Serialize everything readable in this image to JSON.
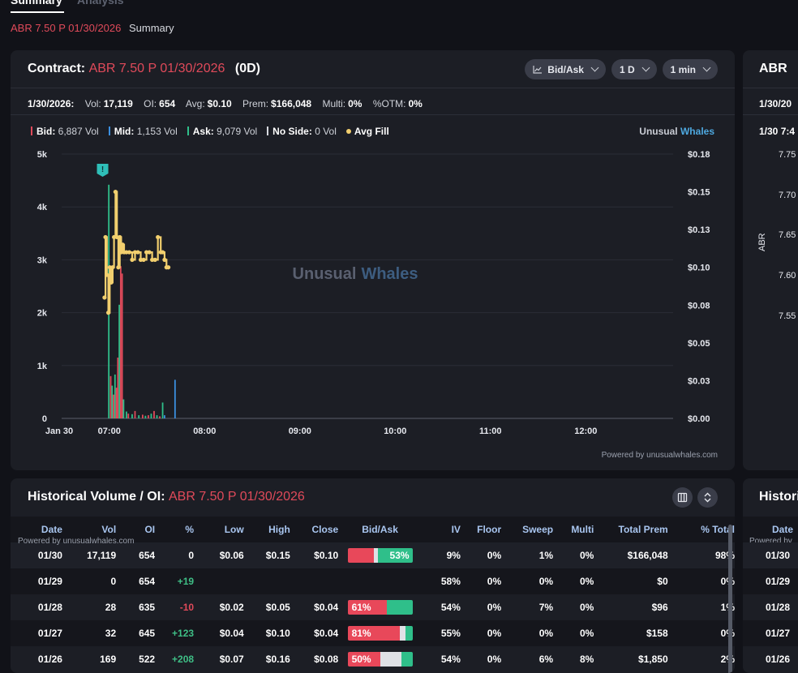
{
  "tabs": {
    "summary": "Summary",
    "analysis": "Analysis"
  },
  "breadcrumb": {
    "contract": "ABR 7.50 P 01/30/2026",
    "label": "Summary"
  },
  "contract_panel": {
    "title_prefix": "Contract:",
    "contract": "ABR 7.50 P 01/30/2026",
    "dte": "(0D)",
    "controls": [
      "Bid/Ask",
      "1 D",
      "1 min"
    ],
    "stats": {
      "date": "1/30/2026:",
      "vol_label": "Vol:",
      "vol": "17,119",
      "oi_label": "OI:",
      "oi": "654",
      "avg_label": "Avg:",
      "avg": "$0.10",
      "prem_label": "Prem:",
      "prem": "$166,048",
      "multi_label": "Multi:",
      "multi": "0%",
      "otm_label": "%OTM:",
      "otm": "0%"
    },
    "legend": {
      "bid_label": "Bid:",
      "bid": "6,887 Vol",
      "mid_label": "Mid:",
      "mid": "1,153 Vol",
      "ask_label": "Ask:",
      "ask": "9,079 Vol",
      "noside_label": "No Side:",
      "noside": "0 Vol",
      "avgfill_label": "Avg Fill"
    },
    "brand": {
      "a": "Unusual",
      "b": "Whales"
    },
    "powered": "Powered by unusualwhales.com",
    "colors": {
      "bid": "#e04a5a",
      "mid": "#3b8fe0",
      "ask": "#2fbf8a",
      "noside": "#d7d9df",
      "avgfill": "#f2cf6e"
    }
  },
  "chart_data": {
    "type": "bar",
    "watermark": {
      "a": "Unusual",
      "b": "Whales"
    },
    "xlim": [
      "06:30",
      "12:55"
    ],
    "x_ticks": [
      "Jan 30",
      "07:00",
      "08:00",
      "09:00",
      "10:00",
      "11:00",
      "12:00"
    ],
    "y_left": {
      "ticks": [
        "0",
        "1k",
        "2k",
        "3k",
        "4k",
        "5k"
      ],
      "lim": [
        0,
        5000
      ]
    },
    "y_right": {
      "ticks": [
        "$0.00",
        "$0.03",
        "$0.05",
        "$0.08",
        "$0.10",
        "$0.13",
        "$0.15",
        "$0.18"
      ],
      "lim": [
        0,
        0.175
      ]
    },
    "volume_bars": [
      {
        "t": 6.995,
        "side": "ask",
        "v": 4420
      },
      {
        "t": 7.015,
        "side": "bid",
        "v": 800
      },
      {
        "t": 7.03,
        "side": "ask",
        "v": 620
      },
      {
        "t": 7.045,
        "side": "bid",
        "v": 450
      },
      {
        "t": 7.06,
        "side": "ask",
        "v": 830
      },
      {
        "t": 7.075,
        "side": "bid",
        "v": 580
      },
      {
        "t": 7.09,
        "side": "bid",
        "v": 1150
      },
      {
        "t": 7.105,
        "side": "ask",
        "v": 2150
      },
      {
        "t": 7.12,
        "side": "bid",
        "v": 2880
      },
      {
        "t": 7.135,
        "side": "bid",
        "v": 2740
      },
      {
        "t": 7.15,
        "side": "ask",
        "v": 360
      },
      {
        "t": 7.18,
        "side": "ask",
        "v": 130
      },
      {
        "t": 7.2,
        "side": "bid",
        "v": 90
      },
      {
        "t": 7.24,
        "side": "ask",
        "v": 80
      },
      {
        "t": 7.27,
        "side": "bid",
        "v": 140
      },
      {
        "t": 7.31,
        "side": "ask",
        "v": 60
      },
      {
        "t": 7.35,
        "side": "bid",
        "v": 70
      },
      {
        "t": 7.38,
        "side": "ask",
        "v": 50
      },
      {
        "t": 7.41,
        "side": "bid",
        "v": 60
      },
      {
        "t": 7.44,
        "side": "ask",
        "v": 90
      },
      {
        "t": 7.47,
        "side": "bid",
        "v": 140
      },
      {
        "t": 7.5,
        "side": "ask",
        "v": 60
      },
      {
        "t": 7.53,
        "side": "bid",
        "v": 40
      },
      {
        "t": 7.56,
        "side": "ask",
        "v": 300
      },
      {
        "t": 7.58,
        "side": "mid",
        "v": 60
      },
      {
        "t": 7.69,
        "side": "mid",
        "v": 730
      }
    ],
    "avg_fill": [
      [
        6.95,
        0.08
      ],
      [
        6.96,
        0.12
      ],
      [
        6.975,
        0.095
      ],
      [
        6.99,
        0.07
      ],
      [
        7.005,
        0.1
      ],
      [
        7.02,
        0.09
      ],
      [
        7.035,
        0.1
      ],
      [
        7.05,
        0.12
      ],
      [
        7.065,
        0.15
      ],
      [
        7.08,
        0.12
      ],
      [
        7.095,
        0.1
      ],
      [
        7.11,
        0.12
      ],
      [
        7.125,
        0.11
      ],
      [
        7.14,
        0.115
      ],
      [
        7.155,
        0.11
      ],
      [
        7.18,
        0.11
      ],
      [
        7.21,
        0.11
      ],
      [
        7.24,
        0.105
      ],
      [
        7.27,
        0.11
      ],
      [
        7.3,
        0.11
      ],
      [
        7.33,
        0.105
      ],
      [
        7.36,
        0.105
      ],
      [
        7.39,
        0.11
      ],
      [
        7.42,
        0.11
      ],
      [
        7.45,
        0.105
      ],
      [
        7.48,
        0.105
      ],
      [
        7.51,
        0.12
      ],
      [
        7.54,
        0.11
      ],
      [
        7.56,
        0.11
      ],
      [
        7.58,
        0.105
      ],
      [
        7.6,
        0.1
      ],
      [
        7.62,
        0.1
      ]
    ],
    "alert_marker": {
      "t": 6.93,
      "label": "!"
    }
  },
  "right_panel": {
    "title": "ABR",
    "date": "1/30/20",
    "sub": "1/30 7:4",
    "axis_label": "ABR",
    "ticks": [
      "7.75",
      "7.70",
      "7.65",
      "7.60",
      "7.55"
    ]
  },
  "hist_panel": {
    "title_prefix": "Historical Volume / OI:",
    "contract": "ABR 7.50 P 01/30/2026",
    "powered": "Powered by unusualwhales.com",
    "columns": [
      "Date",
      "Vol",
      "OI",
      "%",
      "Low",
      "High",
      "Close",
      "Bid/Ask",
      "IV",
      "Floor",
      "Sweep",
      "Multi",
      "Total Prem",
      "% Total"
    ],
    "rows": [
      {
        "date": "01/30",
        "vol": "17,119",
        "oi": "654",
        "chg": "0",
        "chg_sign": "zero",
        "low": "$0.06",
        "high": "$0.15",
        "close": "$0.10",
        "bid_pct": 40,
        "mid_pct": 7,
        "ask_pct": 53,
        "ba_label": "53%",
        "ba_side": "ask",
        "iv": "9%",
        "floor": "0%",
        "sweep": "1%",
        "multi": "0%",
        "prem": "$166,048",
        "total": "98%"
      },
      {
        "date": "01/29",
        "vol": "0",
        "oi": "654",
        "chg": "+19",
        "chg_sign": "pos",
        "low": "",
        "high": "",
        "close": "",
        "bid_pct": 0,
        "mid_pct": 0,
        "ask_pct": 0,
        "ba_label": "",
        "ba_side": "none",
        "iv": "58%",
        "floor": "0%",
        "sweep": "0%",
        "multi": "0%",
        "prem": "$0",
        "total": "0%"
      },
      {
        "date": "01/28",
        "vol": "28",
        "oi": "635",
        "chg": "-10",
        "chg_sign": "neg",
        "low": "$0.02",
        "high": "$0.05",
        "close": "$0.04",
        "bid_pct": 61,
        "mid_pct": 0,
        "ask_pct": 39,
        "ba_label": "61%",
        "ba_side": "bid",
        "iv": "54%",
        "floor": "0%",
        "sweep": "7%",
        "multi": "0%",
        "prem": "$96",
        "total": "1%"
      },
      {
        "date": "01/27",
        "vol": "32",
        "oi": "645",
        "chg": "+123",
        "chg_sign": "pos",
        "low": "$0.04",
        "high": "$0.10",
        "close": "$0.04",
        "bid_pct": 81,
        "mid_pct": 8,
        "ask_pct": 11,
        "ba_label": "81%",
        "ba_side": "bid",
        "iv": "55%",
        "floor": "0%",
        "sweep": "0%",
        "multi": "0%",
        "prem": "$158",
        "total": "0%"
      },
      {
        "date": "01/26",
        "vol": "169",
        "oi": "522",
        "chg": "+208",
        "chg_sign": "pos",
        "low": "$0.07",
        "high": "$0.16",
        "close": "$0.08",
        "bid_pct": 50,
        "mid_pct": 33,
        "ask_pct": 17,
        "ba_label": "50%",
        "ba_side": "bid",
        "iv": "54%",
        "floor": "0%",
        "sweep": "6%",
        "multi": "8%",
        "prem": "$1,850",
        "total": "2%"
      }
    ]
  },
  "hist_right": {
    "title": "Histori",
    "col": "Date",
    "powered": "Powered by",
    "dates": [
      "01/30",
      "01/29",
      "01/28",
      "01/27",
      "01/26"
    ]
  }
}
